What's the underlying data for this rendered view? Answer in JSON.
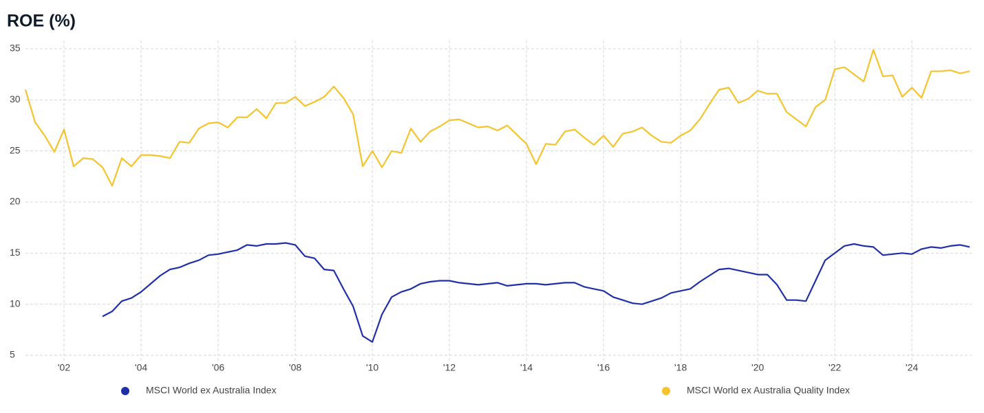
{
  "chart_data": {
    "type": "line",
    "title": "ROE (%)",
    "x": [
      2001,
      2001.25,
      2001.5,
      2001.75,
      2002,
      2002.25,
      2002.5,
      2002.75,
      2003,
      2003.25,
      2003.5,
      2003.75,
      2004,
      2004.25,
      2004.5,
      2004.75,
      2005,
      2005.25,
      2005.5,
      2005.75,
      2006,
      2006.25,
      2006.5,
      2006.75,
      2007,
      2007.25,
      2007.5,
      2007.75,
      2008,
      2008.25,
      2008.5,
      2008.75,
      2009,
      2009.25,
      2009.5,
      2009.75,
      2010,
      2010.25,
      2010.5,
      2010.75,
      2011,
      2011.25,
      2011.5,
      2011.75,
      2012,
      2012.25,
      2012.5,
      2012.75,
      2013,
      2013.25,
      2013.5,
      2013.75,
      2014,
      2014.25,
      2014.5,
      2014.75,
      2015,
      2015.25,
      2015.5,
      2015.75,
      2016,
      2016.25,
      2016.5,
      2016.75,
      2017,
      2017.25,
      2017.5,
      2017.75,
      2018,
      2018.25,
      2018.5,
      2018.75,
      2019,
      2019.25,
      2019.5,
      2019.75,
      2020,
      2020.25,
      2020.5,
      2020.75,
      2021,
      2021.25,
      2021.5,
      2021.75,
      2022,
      2022.25,
      2022.5,
      2022.75,
      2023,
      2023.25,
      2023.5,
      2023.75,
      2024,
      2024.25,
      2024.5,
      2024.75,
      2025,
      2025.25,
      2025.5
    ],
    "series": [
      {
        "name": "MSCI World ex Australia Index",
        "color": "#1f2fa8",
        "values": [
          null,
          null,
          null,
          null,
          null,
          null,
          null,
          null,
          8.8,
          9.3,
          10.3,
          10.6,
          11.2,
          12,
          12.8,
          13.4,
          13.6,
          14,
          14.3,
          14.8,
          14.9,
          15.1,
          15.3,
          15.8,
          15.7,
          15.9,
          15.9,
          16,
          15.8,
          14.7,
          14.5,
          13.4,
          13.3,
          11.5,
          9.8,
          6.9,
          6.3,
          9,
          10.7,
          11.2,
          11.5,
          12,
          12.2,
          12.3,
          12.3,
          12.1,
          12,
          11.9,
          12,
          12.1,
          11.8,
          11.9,
          12,
          12,
          11.9,
          12,
          12.1,
          12.1,
          11.7,
          11.5,
          11.3,
          10.7,
          10.4,
          10.1,
          10,
          10.3,
          10.6,
          11.1,
          11.3,
          11.5,
          12.2,
          12.8,
          13.4,
          13.5,
          13.3,
          13.1,
          12.9,
          12.9,
          11.9,
          10.4,
          10.4,
          10.3,
          12.3,
          14.3,
          15,
          15.7,
          15.9,
          15.7,
          15.6,
          14.8,
          14.9,
          15,
          14.9,
          15.4,
          15.6,
          15.5,
          15.7,
          15.8,
          15.6
        ]
      },
      {
        "name": "MSCI World ex Australia Quality Index",
        "color": "#f5c32c",
        "values": [
          31,
          27.8,
          26.5,
          24.9,
          27.1,
          23.5,
          24.3,
          24.2,
          23.4,
          21.6,
          24.3,
          23.5,
          24.6,
          24.6,
          24.5,
          24.3,
          25.9,
          25.8,
          27.2,
          27.7,
          27.8,
          27.3,
          28.3,
          28.3,
          29.1,
          28.2,
          29.7,
          29.7,
          30.3,
          29.4,
          29.8,
          30.3,
          31.3,
          30.2,
          28.6,
          23.5,
          25,
          23.4,
          25,
          24.8,
          27.2,
          25.9,
          26.9,
          27.4,
          28,
          28.1,
          27.7,
          27.3,
          27.4,
          27,
          27.5,
          26.6,
          25.7,
          23.7,
          25.7,
          25.6,
          26.9,
          27.1,
          26.3,
          25.6,
          26.5,
          25.4,
          26.7,
          26.9,
          27.3,
          26.5,
          25.9,
          25.8,
          26.5,
          27,
          28.1,
          29.6,
          31,
          31.2,
          29.7,
          30.1,
          30.9,
          30.6,
          30.6,
          28.8,
          28.1,
          27.4,
          29.3,
          30,
          33,
          33.2,
          32.5,
          31.8,
          34.9,
          32.3,
          32.4,
          30.3,
          31.2,
          30.2,
          32.8,
          32.8,
          32.9,
          32.6,
          32.8
        ]
      }
    ],
    "xlim": [
      2001,
      2025.55
    ],
    "xticks": [
      {
        "value": 2002,
        "label": "'02"
      },
      {
        "value": 2004,
        "label": "'04"
      },
      {
        "value": 2006,
        "label": "'06"
      },
      {
        "value": 2008,
        "label": "'08"
      },
      {
        "value": 2010,
        "label": "'10"
      },
      {
        "value": 2012,
        "label": "'12"
      },
      {
        "value": 2014,
        "label": "'14"
      },
      {
        "value": 2016,
        "label": "'16"
      },
      {
        "value": 2018,
        "label": "'18"
      },
      {
        "value": 2020,
        "label": "'20"
      },
      {
        "value": 2022,
        "label": "'22"
      },
      {
        "value": 2024,
        "label": "'24"
      }
    ],
    "ylim": [
      5,
      35
    ],
    "yticks": [
      5,
      10,
      15,
      20,
      25,
      30,
      35
    ],
    "grid": true
  }
}
